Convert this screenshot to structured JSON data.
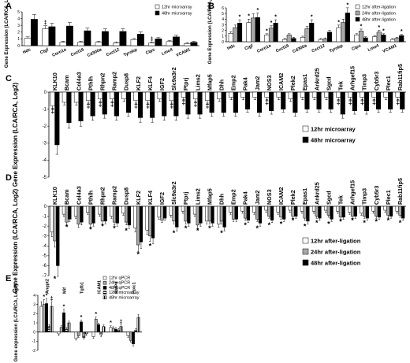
{
  "chart_data": [
    {
      "panel": "A",
      "type": "bar",
      "ylabel": "Gene Expression (LCA/RCA, Log2)",
      "ylim": [
        0,
        5
      ],
      "yticks": [
        0,
        1,
        2,
        3,
        4,
        5
      ],
      "categories": [
        "Hdc",
        "Ctgf",
        "Coro1a",
        "Cxcl16",
        "Cd300a",
        "Cxcl12",
        "Tyrobp",
        "Ctps",
        "Lmo4",
        "VCAM1"
      ],
      "series": [
        {
          "name": "12hr microarray",
          "fill": "white",
          "values": [
            1.1,
            2.5,
            0.5,
            0.5,
            0.5,
            0.4,
            0.9,
            0.4,
            0.6,
            0.3
          ]
        },
        {
          "name": "48hr microarray",
          "fill": "black",
          "values": [
            3.9,
            2.8,
            2.9,
            2.2,
            2.1,
            2.1,
            1.7,
            1.0,
            1.3,
            0.5
          ]
        }
      ],
      "sig_marks": [
        {
          "cat": 1,
          "series": 0,
          "mark": "‡"
        },
        {
          "cat": 7,
          "series": 0,
          "mark": "‡"
        }
      ],
      "legend": "top-right"
    },
    {
      "panel": "B",
      "type": "bar",
      "ylabel": "Gene Expression (LCA/RCA, Log2)",
      "ylim": [
        0,
        6
      ],
      "yticks": [
        0,
        1,
        2,
        3,
        4,
        5,
        6
      ],
      "categories": [
        "Hdc",
        "Ctgf",
        "Coro1a",
        "Cxcl16",
        "Cd300a",
        "Cxcl12",
        "Tyrobp",
        "Ctps",
        "Lmo4",
        "VCAM1"
      ],
      "series": [
        {
          "name": "12hr after-ligation",
          "fill": "white",
          "values": [
            1.5,
            3.4,
            1.2,
            0.4,
            0.8,
            0.4,
            2.5,
            1.2,
            0.9,
            0.4
          ]
        },
        {
          "name": "24hr after-ligation",
          "fill": "gray",
          "values": [
            2.5,
            4.2,
            2.4,
            1.2,
            2.3,
            0.5,
            3.4,
            1.9,
            1.7,
            0.6
          ]
        },
        {
          "name": "48hr after-ligation",
          "fill": "black",
          "values": [
            3.3,
            4.3,
            3.3,
            0.6,
            3.3,
            1.7,
            5.1,
            0.7,
            1.2,
            1.1
          ]
        }
      ],
      "sig_marks": [
        {
          "cat": 0,
          "series": 2,
          "mark": "*"
        },
        {
          "cat": 1,
          "series": 0,
          "mark": "*"
        },
        {
          "cat": 1,
          "series": 2,
          "mark": "*"
        },
        {
          "cat": 2,
          "series": 0,
          "mark": "*"
        },
        {
          "cat": 2,
          "series": 1,
          "mark": "*"
        },
        {
          "cat": 2,
          "series": 2,
          "mark": "*"
        },
        {
          "cat": 4,
          "series": 2,
          "mark": "*"
        },
        {
          "cat": 6,
          "series": 0,
          "mark": "*"
        },
        {
          "cat": 6,
          "series": 2,
          "mark": "*"
        },
        {
          "cat": 7,
          "series": 1,
          "mark": "*"
        },
        {
          "cat": 8,
          "series": 1,
          "mark": "*"
        },
        {
          "cat": 8,
          "series": 2,
          "mark": "*"
        },
        {
          "cat": 9,
          "series": 2,
          "mark": "*"
        }
      ],
      "legend": "top-right"
    },
    {
      "panel": "C",
      "type": "bar",
      "ylabel": "Gene Expression (LCA/RCA, Log2)",
      "ylim": [
        -5,
        0
      ],
      "yticks": [
        0,
        -1,
        -2,
        -3,
        -4,
        -5
      ],
      "categories": [
        "KLK10",
        "Bcam",
        "Col4a3",
        "Pthlh",
        "Rhpn2",
        "Ramp2",
        "Dusp8",
        "KLF2",
        "KLF4",
        "IGF2",
        "Slc9a3r2",
        "Ptprj",
        "Lims2",
        "Mfap5",
        "Dhh",
        "Emp2",
        "Pak4",
        "Jam2",
        "NOS3",
        "ICAM2",
        "Plek2",
        "Epas1",
        "Ankrd25",
        "Sgcd",
        "Tek",
        "Arhgef15",
        "Timp3",
        "Cyb5r3",
        "Plec1",
        "Rab11fip5"
      ],
      "series": [
        {
          "name": "12hr microarray",
          "fill": "white",
          "values": [
            -0.8,
            -0.6,
            -0.6,
            -0.5,
            -0.4,
            -0.4,
            -0.4,
            -0.5,
            -0.5,
            -0.4,
            -0.5,
            -0.3,
            -0.4,
            -0.5,
            -0.4,
            -0.3,
            -0.3,
            -0.3,
            -0.3,
            -0.3,
            -0.4,
            -0.3,
            -0.3,
            -0.3,
            -0.3,
            -0.3,
            -0.3,
            -0.3,
            -0.3,
            -0.3
          ]
        },
        {
          "name": "48hr microarray",
          "fill": "black",
          "values": [
            -3.1,
            -1.8,
            -1.7,
            -1.4,
            -1.3,
            -1.4,
            -1.2,
            -1.5,
            -1.5,
            -1.4,
            -1.4,
            -1.3,
            -1.3,
            -1.2,
            -1.2,
            -1.2,
            -1.0,
            -1.2,
            -1.1,
            -1.0,
            -1.2,
            -1.0,
            -1.0,
            -1.0,
            -1.3,
            -1.1,
            -1.1,
            -1.0,
            -1.0,
            -1.0
          ]
        }
      ],
      "sig_marks": [
        {
          "cat": 0,
          "series": 0,
          "mark": "‡"
        },
        {
          "cat": 3,
          "series": 0,
          "mark": "‡"
        },
        {
          "cat": 4,
          "series": 0,
          "mark": "‡"
        },
        {
          "cat": 5,
          "series": 0,
          "mark": "‡"
        },
        {
          "cat": 7,
          "series": 0,
          "mark": "‡"
        },
        {
          "cat": 8,
          "series": 0,
          "mark": "‡"
        },
        {
          "cat": 10,
          "series": 0,
          "mark": "‡"
        },
        {
          "cat": 11,
          "series": 0,
          "mark": "‡"
        },
        {
          "cat": 12,
          "series": 0,
          "mark": "‡"
        },
        {
          "cat": 13,
          "series": 0,
          "mark": "‡"
        },
        {
          "cat": 18,
          "series": 0,
          "mark": "‡"
        },
        {
          "cat": 24,
          "series": 0,
          "mark": "‡"
        },
        {
          "cat": 25,
          "series": 0,
          "mark": "‡"
        },
        {
          "cat": 26,
          "series": 0,
          "mark": "‡"
        },
        {
          "cat": 27,
          "series": 0,
          "mark": "‡"
        },
        {
          "cat": 29,
          "series": 0,
          "mark": "‡"
        }
      ],
      "legend": "bottom-right"
    },
    {
      "panel": "D",
      "type": "bar",
      "ylabel": "Gene Expression (LCA/RCA, Log2)",
      "ylim": [
        -7,
        0
      ],
      "yticks": [
        0,
        -1,
        -2,
        -3,
        -4,
        -5,
        -6,
        -7
      ],
      "categories": [
        "KLK10",
        "Bcam",
        "Col4a3",
        "Pthlh",
        "Rhpn2",
        "Ramp2",
        "Dusp8",
        "KLF2",
        "KLF4",
        "IGF2",
        "Slc9a3r2",
        "Ptprj",
        "Lims2",
        "Mfap5",
        "Dhh",
        "Emp2",
        "Pak4",
        "Jam2",
        "NOS3",
        "ICAM2",
        "Plek2",
        "Epas1",
        "Ankrd25",
        "Sgcd",
        "Tek",
        "Arhgef15",
        "Timp3",
        "Cyb5r3",
        "Plec1",
        "Rab11fip5"
      ],
      "series": [
        {
          "name": "12hr after-ligation",
          "fill": "white",
          "values": [
            -2.6,
            -0.8,
            -1.0,
            -0.6,
            -0.8,
            -1.0,
            -0.7,
            -2.2,
            -2.4,
            -1.1,
            -0.9,
            -0.5,
            -0.8,
            -1.5,
            -1.8,
            -0.6,
            -0.5,
            -0.6,
            -0.4,
            -0.6,
            -0.4,
            -0.5,
            -0.5,
            -0.4,
            -0.5,
            -0.6,
            -0.7,
            -0.5,
            -0.4,
            -0.5
          ]
        },
        {
          "name": "24hr after-ligation",
          "fill": "gray",
          "values": [
            -3.5,
            -1.6,
            -1.8,
            -1.8,
            -1.5,
            -1.6,
            -1.6,
            -3.9,
            -3.0,
            -1.4,
            -1.5,
            -1.5,
            -1.9,
            -1.5,
            -1.5,
            -1.3,
            -1.2,
            -1.3,
            -1.0,
            -1.1,
            -1.0,
            -1.2,
            -1.0,
            -0.9,
            -1.1,
            -1.0,
            -1.0,
            -1.0,
            -0.9,
            -0.9
          ]
        },
        {
          "name": "48hr after-ligation",
          "fill": "black",
          "values": [
            -6.0,
            -1.3,
            -1.6,
            -1.7,
            -1.5,
            -1.7,
            -1.9,
            -3.6,
            -3.2,
            -1.2,
            -2.1,
            -1.7,
            -1.7,
            -1.7,
            -2.1,
            -1.3,
            -1.4,
            -1.7,
            -1.4,
            -1.3,
            -1.0,
            -1.5,
            -1.2,
            -1.3,
            -1.1,
            -1.0,
            -1.2,
            -1.1,
            -1.0,
            -1.2
          ]
        }
      ],
      "sig_marks": [
        {
          "cat": 0,
          "mark": "*"
        },
        {
          "cat": 1,
          "mark": "*"
        },
        {
          "cat": 3,
          "mark": "*"
        },
        {
          "cat": 4,
          "mark": "*"
        },
        {
          "cat": 5,
          "mark": "*"
        },
        {
          "cat": 6,
          "mark": "*"
        },
        {
          "cat": 7,
          "mark": "*"
        },
        {
          "cat": 8,
          "mark": "*"
        },
        {
          "cat": 10,
          "mark": "*"
        },
        {
          "cat": 11,
          "mark": "*"
        },
        {
          "cat": 12,
          "mark": "*"
        },
        {
          "cat": 13,
          "mark": "*"
        },
        {
          "cat": 14,
          "mark": "*"
        },
        {
          "cat": 16,
          "mark": "*"
        },
        {
          "cat": 17,
          "mark": "*"
        },
        {
          "cat": 18,
          "mark": "*"
        },
        {
          "cat": 19,
          "mark": "*"
        },
        {
          "cat": 20,
          "mark": "*"
        },
        {
          "cat": 21,
          "mark": "*"
        },
        {
          "cat": 22,
          "mark": "*"
        },
        {
          "cat": 23,
          "mark": "*"
        },
        {
          "cat": 24,
          "mark": "*"
        },
        {
          "cat": 25,
          "mark": "*"
        },
        {
          "cat": 26,
          "mark": "*"
        },
        {
          "cat": 27,
          "mark": "*"
        },
        {
          "cat": 28,
          "mark": "*"
        },
        {
          "cat": 29,
          "mark": "*"
        }
      ],
      "legend": "bottom-right"
    },
    {
      "panel": "E",
      "type": "bar",
      "ylabel": "Gene expression (LCA/RCA, Log2)",
      "ylim": [
        -2,
        4
      ],
      "yticks": [
        4,
        3,
        2,
        1,
        0,
        -1,
        -2
      ],
      "categories": [
        "Angpt2",
        "Mif",
        "Tgfb1",
        "ICAM1",
        "BMP4",
        "Ppic1"
      ],
      "series": [
        {
          "name": "12hr qPCR",
          "fill": "white",
          "values": [
            2.8,
            -0.2,
            -0.7,
            -0.5,
            0.5,
            -0.4
          ]
        },
        {
          "name": "24hr qPCR",
          "fill": "gray",
          "values": [
            3.0,
            0.5,
            -0.4,
            1.4,
            0.4,
            -0.9
          ]
        },
        {
          "name": "48hr qPCR",
          "fill": "black",
          "values": [
            3.1,
            2.1,
            1.1,
            0.8,
            0.3,
            -1.3
          ]
        },
        {
          "name": "12hr microarray",
          "fill": "stripe-h",
          "values": [
            0.6,
            0.3,
            -0.6,
            -0.3,
            0.2,
            0.2
          ]
        },
        {
          "name": "48hr microarray",
          "fill": "stripe-v",
          "values": [
            2.8,
            1.0,
            -0.2,
            0.6,
            0.6,
            1.6
          ]
        }
      ],
      "sig_marks": [
        {
          "cat": 0,
          "series": 1,
          "mark": "*"
        },
        {
          "cat": 0,
          "series": 2,
          "mark": "*"
        },
        {
          "cat": 0,
          "series": 4,
          "mark": "‡"
        },
        {
          "cat": 1,
          "series": 2,
          "mark": "*"
        },
        {
          "cat": 2,
          "series": 2,
          "mark": "*"
        },
        {
          "cat": 3,
          "series": 1,
          "mark": "*"
        },
        {
          "cat": 4,
          "series": 0,
          "mark": "*"
        },
        {
          "cat": 4,
          "series": 4,
          "mark": "‡"
        }
      ],
      "legend": "top-right"
    }
  ]
}
